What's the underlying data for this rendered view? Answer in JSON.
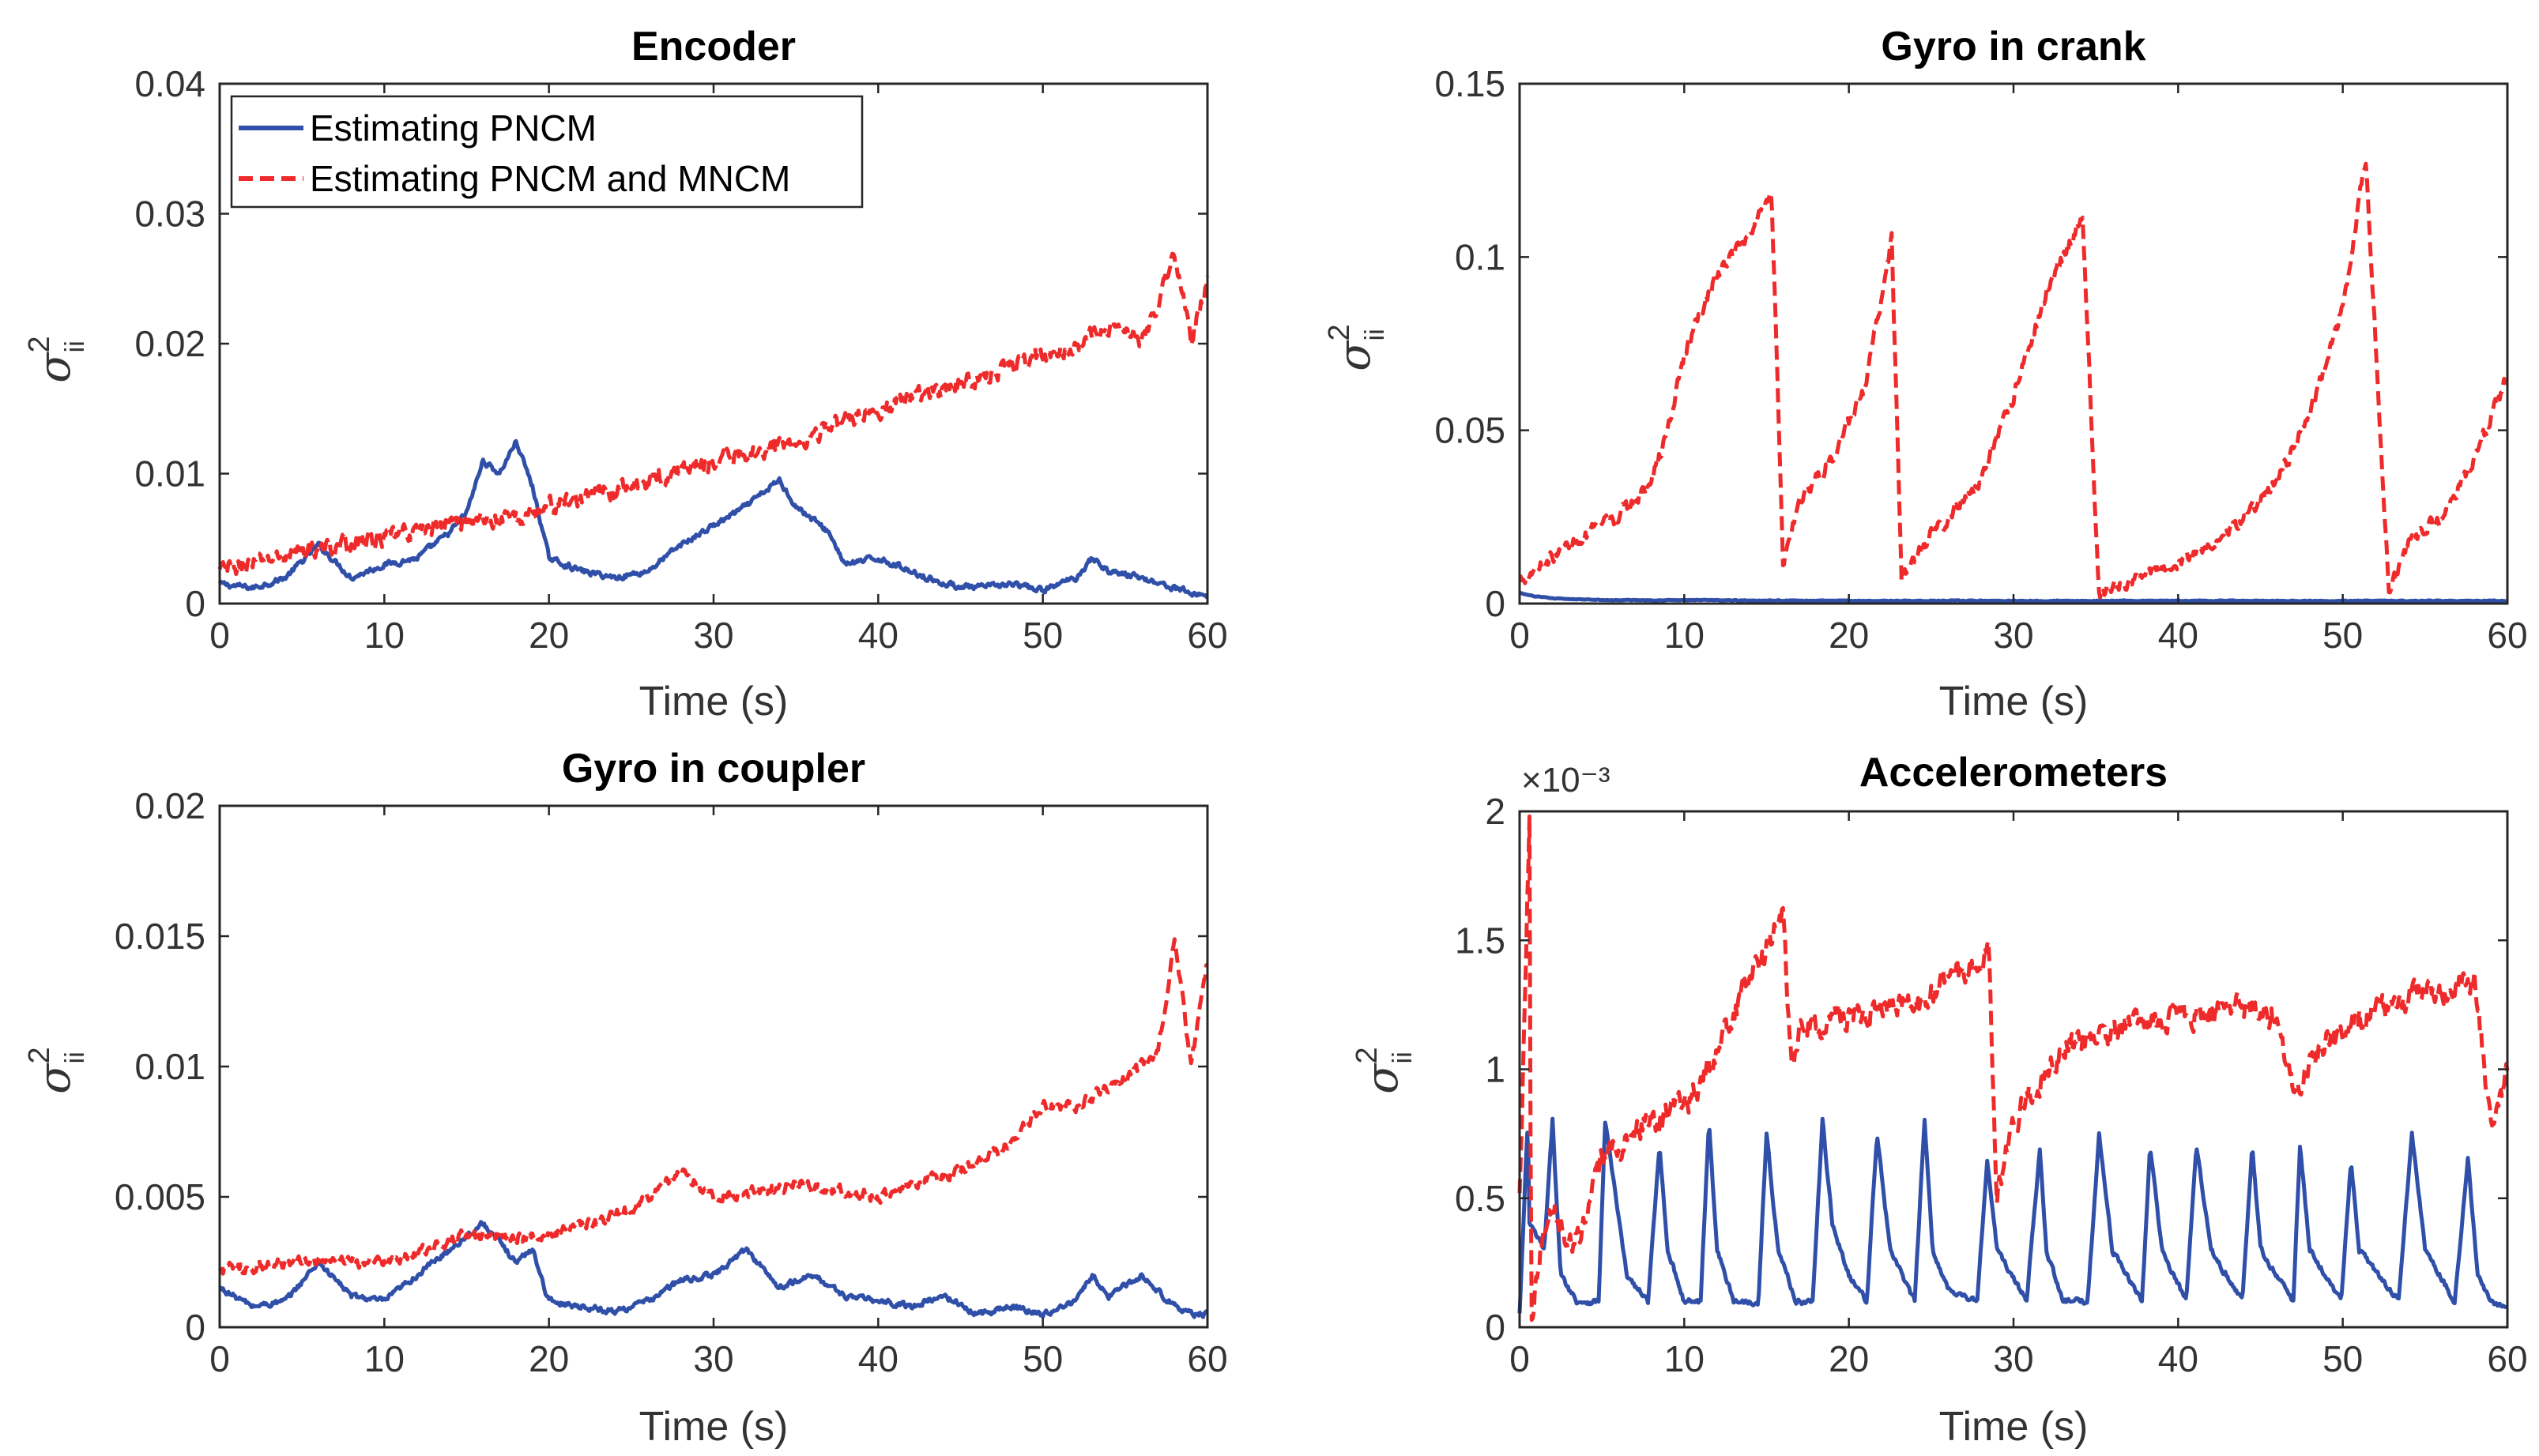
{
  "figure": {
    "legend": {
      "entries": [
        {
          "label": "Estimating PNCM",
          "color": "#2f4fa8",
          "style": "solid"
        },
        {
          "label": "Estimating PNCM and MNCM",
          "color": "#ee2a2a",
          "style": "dashed"
        }
      ]
    }
  },
  "chart_data": [
    {
      "id": "encoder",
      "type": "line",
      "title": "Encoder",
      "xlabel": "Time (s)",
      "ylabel": {
        "symbol": "σ",
        "sup": "2",
        "sub": "ii"
      },
      "xlim": [
        0,
        60
      ],
      "ylim": [
        0,
        0.04
      ],
      "xticks": [
        0,
        10,
        20,
        30,
        40,
        50,
        60
      ],
      "xtick_labels": [
        "0",
        "10",
        "20",
        "30",
        "40",
        "50",
        "60"
      ],
      "yticks": [
        0,
        0.01,
        0.02,
        0.03,
        0.04
      ],
      "ytick_labels": [
        "0",
        "0.01",
        "0.02",
        "0.03",
        "0.04"
      ],
      "exponent_label": "",
      "legend_location": "top-left",
      "series": [
        {
          "name": "Estimating PNCM",
          "color": "#2f4fa8",
          "style": "solid",
          "x": [
            0,
            2,
            4,
            6,
            8,
            10,
            12,
            14,
            15,
            16,
            17,
            18,
            19,
            20,
            22,
            24,
            26,
            28,
            30,
            32,
            33,
            34,
            35,
            36,
            37,
            38,
            40,
            42,
            44,
            46,
            48,
            50,
            52,
            53,
            54,
            56,
            58,
            59,
            60
          ],
          "y": [
            0.0015,
            0.0012,
            0.002,
            0.0045,
            0.002,
            0.003,
            0.0035,
            0.0055,
            0.007,
            0.011,
            0.01,
            0.0125,
            0.009,
            0.0035,
            0.0025,
            0.002,
            0.0025,
            0.0045,
            0.006,
            0.0075,
            0.0085,
            0.0095,
            0.0075,
            0.0065,
            0.0055,
            0.003,
            0.0035,
            0.0025,
            0.0015,
            0.0012,
            0.0015,
            0.001,
            0.002,
            0.0035,
            0.0025,
            0.002,
            0.0012,
            0.0008,
            0.0006
          ],
          "noise": 0.0004
        },
        {
          "name": "Estimating PNCM and MNCM",
          "color": "#ee2a2a",
          "style": "dashed",
          "x": [
            0,
            5,
            10,
            15,
            18,
            20,
            25,
            30,
            35,
            40,
            45,
            50,
            55,
            56,
            57,
            58,
            59,
            60
          ],
          "y": [
            0.0025,
            0.004,
            0.005,
            0.0065,
            0.0065,
            0.0075,
            0.009,
            0.011,
            0.0125,
            0.015,
            0.017,
            0.019,
            0.0215,
            0.02,
            0.023,
            0.027,
            0.02,
            0.025
          ],
          "noise": 0.0012
        }
      ]
    },
    {
      "id": "gyro-crank",
      "type": "line",
      "title": "Gyro in crank",
      "xlabel": "Time (s)",
      "ylabel": {
        "symbol": "σ",
        "sup": "2",
        "sub": "ii"
      },
      "xlim": [
        0,
        60
      ],
      "ylim": [
        0,
        0.15
      ],
      "xticks": [
        0,
        10,
        20,
        30,
        40,
        50,
        60
      ],
      "xtick_labels": [
        "0",
        "10",
        "20",
        "30",
        "40",
        "50",
        "60"
      ],
      "yticks": [
        0,
        0.05,
        0.1,
        0.15
      ],
      "ytick_labels": [
        "0",
        "0.05",
        "0.1",
        "0.15"
      ],
      "exponent_label": "",
      "legend_location": "",
      "series": [
        {
          "name": "Estimating PNCM",
          "color": "#2f4fa8",
          "style": "solid",
          "x": [
            0,
            1,
            2,
            5,
            10,
            20,
            30,
            40,
            50,
            60
          ],
          "y": [
            0.003,
            0.002,
            0.0015,
            0.001,
            0.001,
            0.0008,
            0.0008,
            0.0008,
            0.0008,
            0.0008
          ],
          "noise": 0.0002
        },
        {
          "name": "Estimating PNCM and MNCM",
          "color": "#ee2a2a",
          "style": "dashed",
          "x": [
            0,
            3,
            6,
            8,
            9,
            10,
            12,
            14,
            15.3,
            16,
            17,
            19,
            21,
            22.6,
            23.2,
            25,
            28,
            30,
            32,
            34.2,
            35.2,
            37,
            40,
            43,
            46,
            48,
            50,
            51.4,
            52.8,
            54,
            56,
            58,
            60
          ],
          "y": [
            0.007,
            0.017,
            0.025,
            0.035,
            0.05,
            0.072,
            0.095,
            0.107,
            0.12,
            0.012,
            0.03,
            0.042,
            0.062,
            0.105,
            0.007,
            0.02,
            0.035,
            0.06,
            0.09,
            0.112,
            0.002,
            0.006,
            0.012,
            0.02,
            0.035,
            0.055,
            0.085,
            0.128,
            0.003,
            0.018,
            0.025,
            0.042,
            0.065
          ],
          "noise": 0.0035
        }
      ]
    },
    {
      "id": "gyro-coupler",
      "type": "line",
      "title": "Gyro in coupler",
      "xlabel": "Time (s)",
      "ylabel": {
        "symbol": "σ",
        "sup": "2",
        "sub": "ii"
      },
      "xlim": [
        0,
        60
      ],
      "ylim": [
        0,
        0.02
      ],
      "xticks": [
        0,
        10,
        20,
        30,
        40,
        50,
        60
      ],
      "xtick_labels": [
        "0",
        "10",
        "20",
        "30",
        "40",
        "50",
        "60"
      ],
      "yticks": [
        0,
        0.005,
        0.01,
        0.015,
        0.02
      ],
      "ytick_labels": [
        "0",
        "0.005",
        "0.01",
        "0.015",
        "0.02"
      ],
      "exponent_label": "",
      "legend_location": "",
      "series": [
        {
          "name": "Estimating PNCM",
          "color": "#2f4fa8",
          "style": "solid",
          "x": [
            0,
            2,
            4,
            6,
            8,
            10,
            12,
            14,
            16,
            18,
            19,
            20,
            22,
            24,
            26,
            28,
            30,
            32,
            34,
            36,
            38,
            40,
            42,
            44,
            46,
            48,
            50,
            52,
            53,
            54,
            56,
            58,
            59,
            60
          ],
          "y": [
            0.0015,
            0.0008,
            0.001,
            0.0025,
            0.0012,
            0.001,
            0.002,
            0.003,
            0.004,
            0.0025,
            0.003,
            0.001,
            0.0008,
            0.0006,
            0.001,
            0.0018,
            0.002,
            0.003,
            0.0015,
            0.002,
            0.0012,
            0.001,
            0.0008,
            0.0012,
            0.0005,
            0.0008,
            0.0005,
            0.001,
            0.002,
            0.0012,
            0.002,
            0.0008,
            0.0005,
            0.0005
          ],
          "noise": 0.0002
        },
        {
          "name": "Estimating PNCM and MNCM",
          "color": "#ee2a2a",
          "style": "dashed",
          "x": [
            0,
            5,
            10,
            15,
            20,
            25,
            28,
            30,
            35,
            40,
            45,
            48,
            50,
            52,
            55,
            57,
            58,
            59,
            60
          ],
          "y": [
            0.0022,
            0.0025,
            0.0025,
            0.0035,
            0.0035,
            0.0045,
            0.006,
            0.005,
            0.0055,
            0.005,
            0.006,
            0.007,
            0.0085,
            0.0085,
            0.0095,
            0.0105,
            0.015,
            0.01,
            0.014
          ],
          "noise": 0.0004
        }
      ]
    },
    {
      "id": "accelerometers",
      "type": "line",
      "title": "Accelerometers",
      "xlabel": "Time (s)",
      "ylabel": {
        "symbol": "σ",
        "sup": "2",
        "sub": "ii"
      },
      "xlim": [
        0,
        60
      ],
      "ylim": [
        0,
        2
      ],
      "xticks": [
        0,
        10,
        20,
        30,
        40,
        50,
        60
      ],
      "xtick_labels": [
        "0",
        "10",
        "20",
        "30",
        "40",
        "50",
        "60"
      ],
      "yticks": [
        0,
        0.5,
        1,
        1.5,
        2
      ],
      "ytick_labels": [
        "0",
        "0.5",
        "1",
        "1.5",
        "2"
      ],
      "exponent_label": "×10⁻³",
      "legend_location": "",
      "series": [
        {
          "name": "Estimating PNCM",
          "color": "#2f4fa8",
          "style": "solid",
          "x": [
            0,
            0.5,
            0.6,
            1.5,
            2.0,
            2.5,
            3.5,
            4.8,
            5.2,
            6.5,
            7.8,
            8.5,
            9.0,
            10.0,
            11.0,
            11.5,
            12.0,
            13.0,
            14.5,
            15.0,
            15.7,
            16.8,
            17.8,
            18.4,
            19.0,
            20.0,
            21.1,
            21.7,
            22.5,
            24.0,
            24.6,
            25.1,
            26.0,
            27.8,
            28.4,
            29.0,
            30.8,
            31.6,
            32.0,
            33.0,
            34.5,
            35.2,
            36.0,
            37.8,
            38.3,
            39.0,
            40.5,
            41.1,
            42.0,
            43.9,
            44.5,
            45.0,
            47.0,
            47.4,
            48.0,
            49.9,
            50.5,
            51.0,
            53.4,
            54.2,
            55.0,
            56.8,
            57.6,
            58.2,
            59.0,
            60.0
          ],
          "y": [
            0.05,
            0.8,
            0.4,
            0.3,
            0.8,
            0.2,
            0.1,
            0.1,
            0.8,
            0.2,
            0.1,
            0.7,
            0.3,
            0.1,
            0.1,
            0.8,
            0.3,
            0.1,
            0.1,
            0.75,
            0.3,
            0.1,
            0.1,
            0.8,
            0.4,
            0.2,
            0.1,
            0.75,
            0.3,
            0.1,
            0.8,
            0.3,
            0.15,
            0.1,
            0.65,
            0.3,
            0.1,
            0.7,
            0.3,
            0.1,
            0.1,
            0.75,
            0.3,
            0.1,
            0.7,
            0.3,
            0.1,
            0.7,
            0.3,
            0.1,
            0.7,
            0.3,
            0.1,
            0.7,
            0.3,
            0.1,
            0.65,
            0.3,
            0.1,
            0.75,
            0.3,
            0.1,
            0.65,
            0.2,
            0.1,
            0.07
          ],
          "noise": 0.02
        },
        {
          "name": "Estimating PNCM and MNCM",
          "color": "#ee2a2a",
          "style": "dashed",
          "x": [
            0,
            0.6,
            0.7,
            1.5,
            2,
            3,
            4,
            5,
            6,
            8,
            10,
            12,
            14,
            16,
            16.5,
            17,
            20,
            24,
            28.5,
            29,
            30,
            33,
            36,
            40,
            44,
            46,
            47,
            48,
            51,
            55,
            58,
            59,
            60
          ],
          "y": [
            0.5,
            2.0,
            0.05,
            0.4,
            0.5,
            0.3,
            0.4,
            0.65,
            0.7,
            0.8,
            0.85,
            1.05,
            1.35,
            1.6,
            1.0,
            1.15,
            1.2,
            1.25,
            1.45,
            0.5,
            0.8,
            1.1,
            1.15,
            1.2,
            1.25,
            1.2,
            0.9,
            1.05,
            1.2,
            1.3,
            1.35,
            0.8,
            1.0
          ],
          "noise": 0.09
        }
      ]
    }
  ]
}
